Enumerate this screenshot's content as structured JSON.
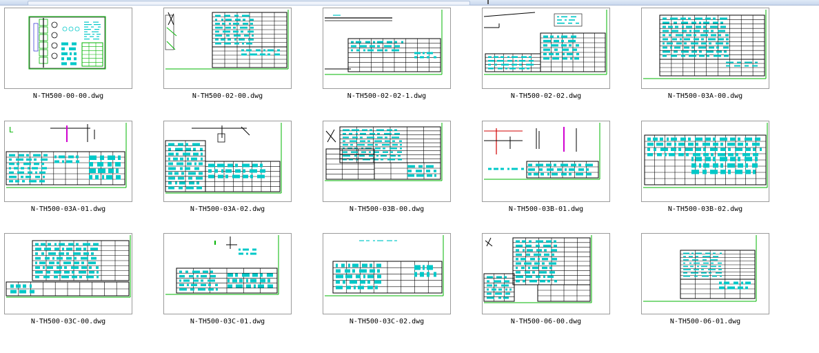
{
  "window": {
    "scroll_glyph": "╷"
  },
  "files": [
    {
      "name": "N-TH500-00-00.dwg",
      "icon": "dwg-thumbnail-icon"
    },
    {
      "name": "N-TH500-02-00.dwg",
      "icon": "dwg-thumbnail-icon"
    },
    {
      "name": "N-TH500-02-02-1.dwg",
      "icon": "dwg-thumbnail-icon"
    },
    {
      "name": "N-TH500-02-02.dwg",
      "icon": "dwg-thumbnail-icon"
    },
    {
      "name": "N-TH500-03A-00.dwg",
      "icon": "dwg-thumbnail-icon"
    },
    {
      "name": "N-TH500-03A-01.dwg",
      "icon": "dwg-thumbnail-icon"
    },
    {
      "name": "N-TH500-03A-02.dwg",
      "icon": "dwg-thumbnail-icon"
    },
    {
      "name": "N-TH500-03B-00.dwg",
      "icon": "dwg-thumbnail-icon"
    },
    {
      "name": "N-TH500-03B-01.dwg",
      "icon": "dwg-thumbnail-icon"
    },
    {
      "name": "N-TH500-03B-02.dwg",
      "icon": "dwg-thumbnail-icon"
    },
    {
      "name": "N-TH500-03C-00.dwg",
      "icon": "dwg-thumbnail-icon"
    },
    {
      "name": "N-TH500-03C-01.dwg",
      "icon": "dwg-thumbnail-icon"
    },
    {
      "name": "N-TH500-03C-02.dwg",
      "icon": "dwg-thumbnail-icon"
    },
    {
      "name": "N-TH500-06-00.dwg",
      "icon": "dwg-thumbnail-icon"
    },
    {
      "name": "N-TH500-06-01.dwg",
      "icon": "dwg-thumbnail-icon"
    }
  ],
  "colors": {
    "cad_line": "#00b400",
    "cad_text": "#00c8c8",
    "cad_dark": "#000000",
    "cad_blue": "#0000c8",
    "cad_red": "#d00000",
    "cad_magenta": "#d000d0",
    "thumb_border": "#9a9a9a"
  }
}
